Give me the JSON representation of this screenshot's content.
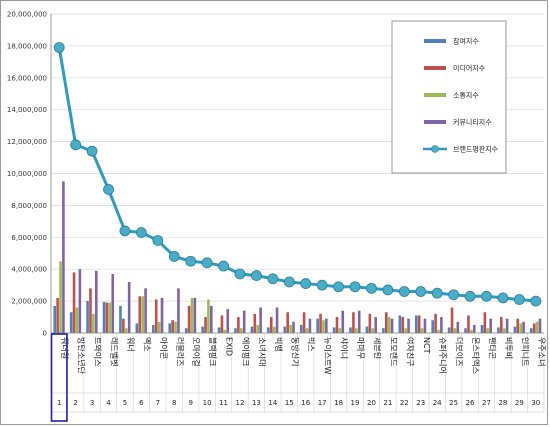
{
  "chart_data": {
    "type": "bar",
    "title": "",
    "xlabel": "",
    "ylabel": "",
    "ylim": [
      0,
      20000000
    ],
    "grid": true,
    "legend_position": "top-right",
    "y_ticks": [
      "0",
      "2,000,000",
      "4,000,000",
      "6,000,000",
      "8,000,000",
      "10,000,000",
      "12,000,000",
      "14,000,000",
      "16,000,000",
      "18,000,000",
      "20,000,000"
    ],
    "categories": [
      "워너원",
      "방탄소년단",
      "트와이스",
      "레드벨벳",
      "워너",
      "엑소",
      "아이콘",
      "러블리즈",
      "오마이걸",
      "블랙핑크",
      "EXID",
      "에이핑크",
      "소녀시대",
      "빅뱅",
      "동방신기",
      "빅스",
      "뉴이스트W",
      "샤이니",
      "마마무",
      "세븐틴",
      "모모랜드",
      "여자친구",
      "NCT",
      "슈퍼주니어",
      "더보이즈",
      "몬스타엑스",
      "펜타곤",
      "비투비",
      "인피니트",
      "우주소녀"
    ],
    "ranks": [
      "1",
      "2",
      "3",
      "4",
      "5",
      "6",
      "7",
      "8",
      "9",
      "10",
      "11",
      "12",
      "13",
      "14",
      "15",
      "16",
      "17",
      "18",
      "19",
      "20",
      "21",
      "22",
      "23",
      "24",
      "25",
      "26",
      "27",
      "28",
      "29",
      "30"
    ],
    "highlight_index": 0,
    "series": [
      {
        "name": "참여지수",
        "kind": "bar",
        "color": "#4f81bd",
        "values": [
          1700000,
          1300000,
          2000000,
          1950000,
          1700000,
          600000,
          500000,
          600000,
          300000,
          400000,
          350000,
          300000,
          400000,
          350000,
          400000,
          500000,
          900000,
          350000,
          350000,
          400000,
          300000,
          1100000,
          1100000,
          800000,
          350000,
          300000,
          500000,
          350000,
          400000,
          300000
        ]
      },
      {
        "name": "미디어지수",
        "kind": "bar",
        "color": "#c0504d",
        "values": [
          2200000,
          3800000,
          2800000,
          1900000,
          900000,
          2300000,
          2100000,
          800000,
          1700000,
          1000000,
          1100000,
          1000000,
          1200000,
          1000000,
          1300000,
          1300000,
          1200000,
          1000000,
          1300000,
          1200000,
          1300000,
          1000000,
          1100000,
          1200000,
          1600000,
          1100000,
          1300000,
          1000000,
          900000,
          600000
        ]
      },
      {
        "name": "소통지수",
        "kind": "bar",
        "color": "#9bbb59",
        "values": [
          4500000,
          1600000,
          1200000,
          1900000,
          300000,
          2300000,
          700000,
          700000,
          2200000,
          2100000,
          200000,
          300000,
          500000,
          400000,
          500000,
          300000,
          800000,
          300000,
          300000,
          300000,
          1000000,
          300000,
          300000,
          200000,
          300000,
          200000,
          300000,
          300000,
          600000,
          700000
        ]
      },
      {
        "name": "커뮤니티지수",
        "kind": "bar",
        "color": "#8064a2",
        "values": [
          9500000,
          4000000,
          3900000,
          3700000,
          3200000,
          2800000,
          2200000,
          2800000,
          2200000,
          1700000,
          1500000,
          1400000,
          1600000,
          1600000,
          700000,
          900000,
          900000,
          1400000,
          1400000,
          1000000,
          900000,
          900000,
          900000,
          1000000,
          700000,
          500000,
          900000,
          900000,
          700000,
          900000
        ]
      },
      {
        "name": "브랜드평판지수",
        "kind": "line",
        "color": "#2e9bbf",
        "marker_color": "#4bacc6",
        "values": [
          17900000,
          11800000,
          11400000,
          9000000,
          6400000,
          6300000,
          5800000,
          4800000,
          4500000,
          4400000,
          4200000,
          3700000,
          3600000,
          3400000,
          3200000,
          3100000,
          3000000,
          2900000,
          2900000,
          2800000,
          2700000,
          2600000,
          2600000,
          2500000,
          2400000,
          2300000,
          2300000,
          2200000,
          2100000,
          2000000
        ]
      }
    ]
  }
}
